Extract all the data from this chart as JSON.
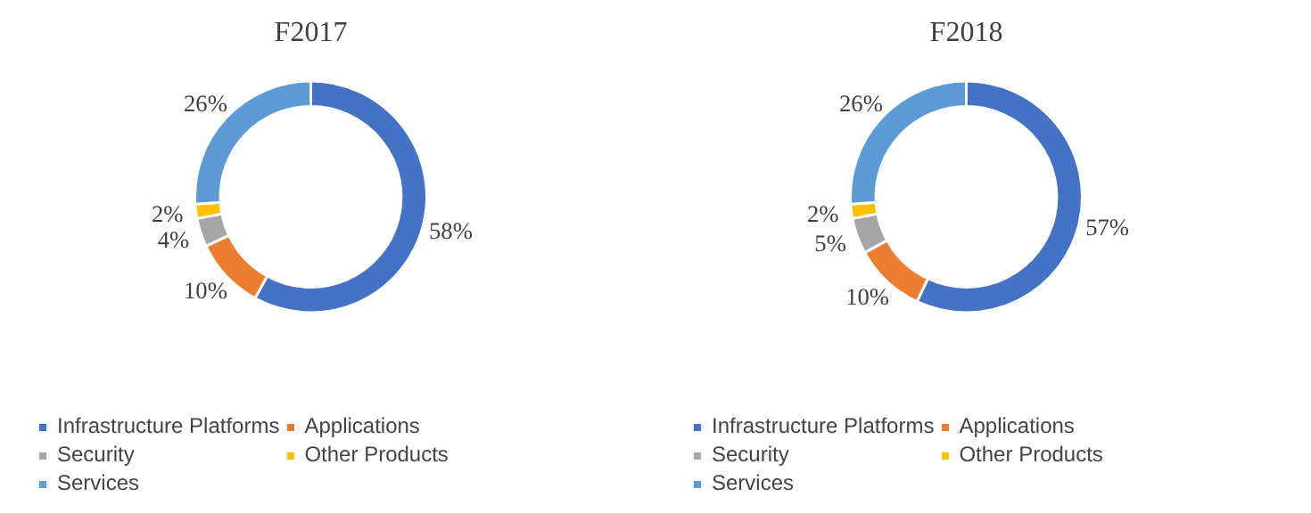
{
  "chart_data": [
    {
      "type": "donut",
      "title": "F2017",
      "categories": [
        "Infrastructure Platforms",
        "Applications",
        "Security",
        "Other Products",
        "Services"
      ],
      "values": [
        58,
        10,
        4,
        2,
        26
      ],
      "value_labels": [
        "58%",
        "10%",
        "4%",
        "2%",
        "26%"
      ],
      "colors": [
        "#4472c4",
        "#ed7d31",
        "#a5a5a5",
        "#ffc000",
        "#5b9bd5"
      ],
      "legend": "bottom"
    },
    {
      "type": "donut",
      "title": "F2018",
      "categories": [
        "Infrastructure Platforms",
        "Applications",
        "Security",
        "Other Products",
        "Services"
      ],
      "values": [
        57,
        10,
        5,
        2,
        26
      ],
      "value_labels": [
        "57%",
        "10%",
        "5%",
        "2%",
        "26%"
      ],
      "colors": [
        "#4472c4",
        "#ed7d31",
        "#a5a5a5",
        "#ffc000",
        "#5b9bd5"
      ],
      "legend": "bottom"
    }
  ]
}
